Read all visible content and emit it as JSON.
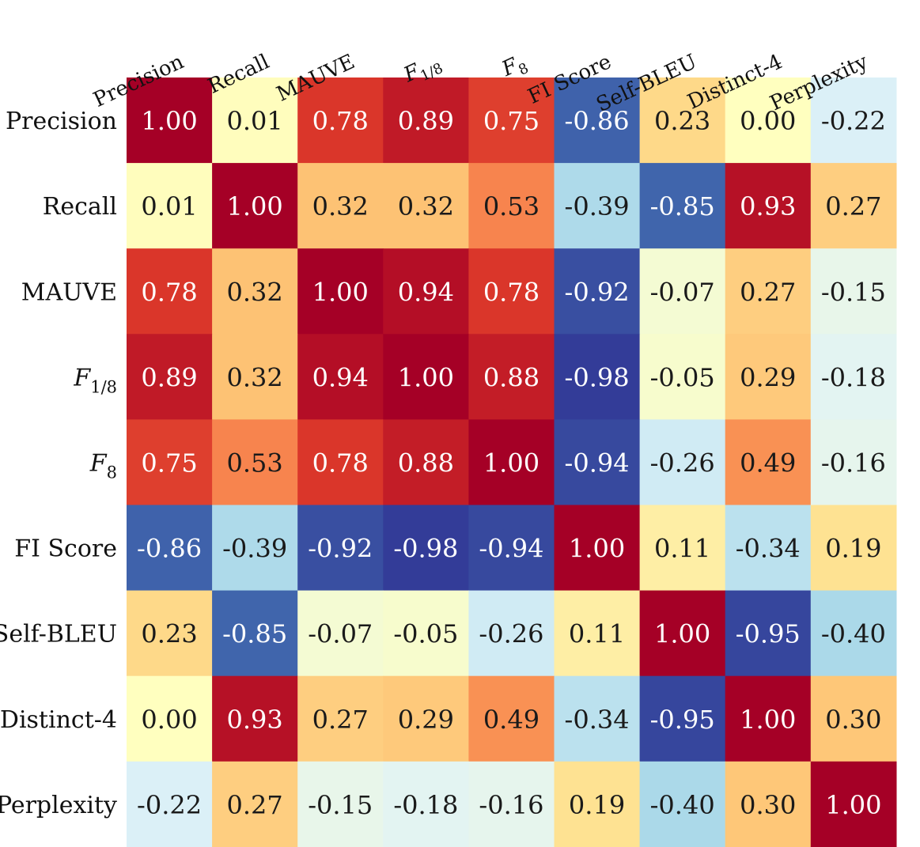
{
  "chart_data": {
    "type": "heatmap",
    "title": "",
    "colormap": "RdYlBu_r",
    "vmin": -1,
    "vmax": 1,
    "value_format": "2 decimals",
    "row_labels": [
      {
        "base": "Precision",
        "sub": ""
      },
      {
        "base": "Recall",
        "sub": ""
      },
      {
        "base": "MAUVE",
        "sub": ""
      },
      {
        "base": "F",
        "sub": "1/8",
        "italic": true
      },
      {
        "base": "F",
        "sub": "8",
        "italic": true
      },
      {
        "base": "FI Score",
        "sub": ""
      },
      {
        "base": "Self-BLEU",
        "sub": ""
      },
      {
        "base": "Distinct-4",
        "sub": ""
      },
      {
        "base": "Perplexity",
        "sub": ""
      }
    ],
    "col_labels": [
      {
        "base": "Precision",
        "sub": ""
      },
      {
        "base": "Recall",
        "sub": ""
      },
      {
        "base": "MAUVE",
        "sub": ""
      },
      {
        "base": "F",
        "sub": "1/8"
      },
      {
        "base": "F",
        "sub": "8"
      },
      {
        "base": "FI Score",
        "sub": ""
      },
      {
        "base": "Self-BLEU",
        "sub": ""
      },
      {
        "base": "Distinct-4",
        "sub": ""
      },
      {
        "base": "Perplexity",
        "sub": ""
      }
    ],
    "values": [
      [
        1.0,
        0.01,
        0.78,
        0.89,
        0.75,
        -0.86,
        0.23,
        0.0,
        -0.22
      ],
      [
        0.01,
        1.0,
        0.32,
        0.32,
        0.53,
        -0.39,
        -0.85,
        0.93,
        0.27
      ],
      [
        0.78,
        0.32,
        1.0,
        0.94,
        0.78,
        -0.92,
        -0.07,
        0.27,
        -0.15
      ],
      [
        0.89,
        0.32,
        0.94,
        1.0,
        0.88,
        -0.98,
        -0.05,
        0.29,
        -0.18
      ],
      [
        0.75,
        0.53,
        0.78,
        0.88,
        1.0,
        -0.94,
        -0.26,
        0.49,
        -0.16
      ],
      [
        -0.86,
        -0.39,
        -0.92,
        -0.98,
        -0.94,
        1.0,
        0.11,
        -0.34,
        0.19
      ],
      [
        0.23,
        -0.85,
        -0.07,
        -0.05,
        -0.26,
        0.11,
        1.0,
        -0.95,
        -0.4
      ],
      [
        0.0,
        0.93,
        0.27,
        0.29,
        0.49,
        -0.34,
        -0.95,
        1.0,
        0.3
      ],
      [
        -0.22,
        0.27,
        -0.15,
        -0.18,
        -0.16,
        0.19,
        -0.4,
        0.3,
        1.0
      ]
    ]
  }
}
